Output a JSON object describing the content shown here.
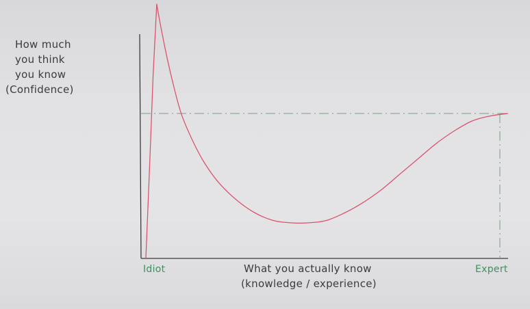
{
  "chart_data": {
    "type": "line",
    "ylabel_lines": [
      "How much",
      "you think",
      "you know",
      "(Confidence)"
    ],
    "xlabel_lines": [
      "What you actually know",
      "(knowledge / experience)"
    ],
    "x_tick_labels": [
      {
        "label": "Idiot",
        "position": "start"
      },
      {
        "label": "Expert",
        "position": "end"
      }
    ],
    "xlim": [
      0,
      1
    ],
    "ylim": [
      0,
      1
    ],
    "grid": false,
    "reference_line_y": 0.57,
    "series": [
      {
        "x": [
          0,
          0.01,
          0.02,
          0.03,
          0.04,
          0.06,
          0.08,
          0.1,
          0.13,
          0.16,
          0.2,
          0.25,
          0.3,
          0.35,
          0.4,
          0.45,
          0.5,
          0.55,
          0.6,
          0.65,
          0.7,
          0.75,
          0.8,
          0.85,
          0.9,
          0.95,
          1.0
        ],
        "y": [
          0,
          0.35,
          0.72,
          1.0,
          0.92,
          0.78,
          0.66,
          0.56,
          0.46,
          0.38,
          0.3,
          0.23,
          0.18,
          0.15,
          0.14,
          0.14,
          0.15,
          0.18,
          0.22,
          0.27,
          0.33,
          0.39,
          0.45,
          0.5,
          0.54,
          0.56,
          0.57
        ]
      }
    ]
  },
  "colors": {
    "curve": "#d8546a",
    "axis": "#3a3a3a",
    "reference": "#7a9e84",
    "tick_label": "#3f8f62",
    "text": "#3a3a3a"
  }
}
